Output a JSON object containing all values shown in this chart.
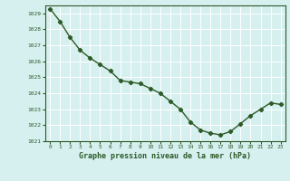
{
  "x": [
    0,
    1,
    2,
    3,
    4,
    5,
    6,
    7,
    8,
    9,
    10,
    11,
    12,
    13,
    14,
    15,
    16,
    17,
    18,
    19,
    20,
    21,
    22,
    23
  ],
  "y": [
    1029.3,
    1028.5,
    1027.5,
    1026.7,
    1026.2,
    1025.8,
    1025.4,
    1024.8,
    1024.7,
    1024.6,
    1024.3,
    1024.0,
    1023.5,
    1023.0,
    1022.2,
    1021.7,
    1021.5,
    1021.4,
    1021.6,
    1022.1,
    1022.6,
    1023.0,
    1023.4,
    1023.3
  ],
  "ylim": [
    1021.0,
    1029.5
  ],
  "yticks": [
    1021,
    1022,
    1023,
    1024,
    1025,
    1026,
    1027,
    1028,
    1029
  ],
  "xlabel": "Graphe pression niveau de la mer (hPa)",
  "line_color": "#2d5a27",
  "bg_color": "#d6f0f0",
  "grid_color": "#ffffff",
  "fig_bg": "#d6f0f0",
  "marker": "D",
  "markersize": 2.2,
  "linewidth": 1.0
}
